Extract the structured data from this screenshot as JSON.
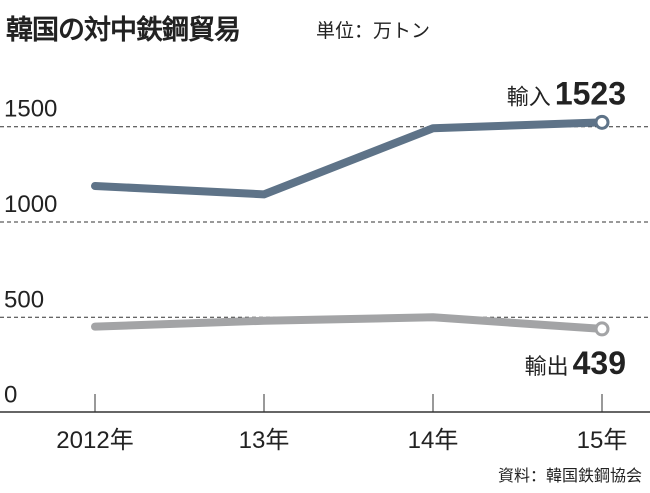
{
  "title": "韓国の対中鉄鋼貿易",
  "unit": "単位：万トン",
  "source": "資料：韓国鉄鋼協会",
  "chart_data": {
    "type": "line",
    "title": "韓国の対中鉄鋼貿易",
    "ylabel": "単位：万トン",
    "categories": [
      "2012年",
      "13年",
      "14年",
      "15年"
    ],
    "yticks": [
      0,
      500,
      1000,
      1500
    ],
    "ylim": [
      0,
      1500
    ],
    "grid": true,
    "series": [
      {
        "name": "輸入",
        "values": [
          1189,
          1145,
          1492,
          1523
        ],
        "end_label": "1523",
        "color": "#5e7388"
      },
      {
        "name": "輸出",
        "values": [
          451,
          482,
          500,
          439
        ],
        "end_label": "439",
        "color": "#a3a4a6"
      }
    ]
  }
}
